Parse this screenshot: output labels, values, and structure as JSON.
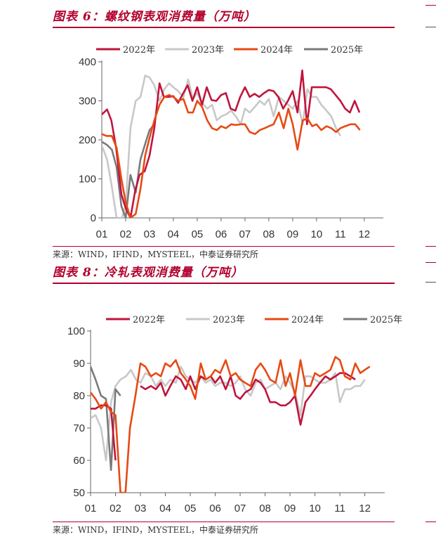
{
  "charts": [
    {
      "caption": "图表 6：螺纹钢表观消费量（万吨）",
      "source": "来源：WIND，IFIND，MYSTEEL，中泰证券研究所"
    },
    {
      "caption": "图表 8：冷轧表观消费量（万吨）",
      "source": "来源：WIND，IFIND，MYSTEEL，中泰证券研究所"
    }
  ],
  "chart_data": [
    {
      "type": "line",
      "title": "图表 6：螺纹钢表观消费量（万吨）",
      "x_tick_labels": [
        "01",
        "02",
        "03",
        "04",
        "05",
        "06",
        "07",
        "08",
        "09",
        "10",
        "11",
        "12"
      ],
      "xlim": [
        1,
        12.8
      ],
      "ylim": [
        0,
        400
      ],
      "yticks": [
        0,
        100,
        200,
        300,
        400
      ],
      "legend_position": "top",
      "grid": false,
      "series": [
        {
          "name": "2022年",
          "color": "#c0143c",
          "x": [
            1.0,
            1.22,
            1.4,
            1.6,
            1.82,
            2.0,
            2.2,
            2.4,
            2.58,
            2.8,
            3.0,
            3.2,
            3.42,
            3.6,
            3.8,
            4.0,
            4.2,
            4.4,
            4.6,
            4.8,
            5.0,
            5.2,
            5.4,
            5.6,
            5.8,
            6.0,
            6.2,
            6.4,
            6.6,
            6.8,
            7.0,
            7.2,
            7.4,
            7.6,
            7.8,
            8.0,
            8.2,
            8.4,
            8.6,
            8.8,
            9.0,
            9.2,
            9.4,
            9.6,
            9.8,
            10.0,
            10.2,
            10.4,
            10.6,
            10.8,
            11.0,
            11.2,
            11.4,
            11.6,
            11.8,
            12.0,
            12.2,
            12.4,
            12.6,
            12.8
          ],
          "y": [
            265,
            278,
            250,
            180,
            60,
            25,
            0,
            70,
            110,
            120,
            160,
            230,
            345,
            310,
            310,
            312,
            295,
            318,
            340,
            300,
            335,
            290,
            335,
            302,
            300,
            315,
            320,
            280,
            275,
            310,
            335,
            310,
            318,
            310,
            320,
            328,
            325,
            310,
            280,
            300,
            325,
            270,
            378,
            240,
            335,
            335,
            335,
            335,
            330,
            315,
            300,
            280,
            270,
            300,
            270,
            null,
            null,
            null,
            null,
            null
          ]
        },
        {
          "name": "2023年",
          "color": "#c8c8c8",
          "x": [
            1.0,
            1.22,
            1.42,
            1.62,
            1.84,
            2.0,
            2.2,
            2.42,
            2.62,
            2.82,
            3.0,
            3.2,
            3.42,
            3.62,
            3.82,
            4.0,
            4.2,
            4.42,
            4.62,
            4.82,
            5.0,
            5.2,
            5.42,
            5.62,
            5.82,
            6.0,
            6.2,
            6.42,
            6.62,
            6.82,
            7.0,
            7.2,
            7.42,
            7.62,
            7.82,
            8.0,
            8.2,
            8.42,
            8.62,
            8.82,
            9.0,
            9.2,
            9.42,
            9.62,
            9.82,
            10.0,
            10.2,
            10.42,
            10.62,
            10.82,
            11.0,
            11.2,
            11.42,
            11.62,
            11.82,
            12.0,
            12.2,
            12.42,
            12.62,
            12.82
          ],
          "y": [
            185,
            150,
            80,
            0,
            0,
            30,
            230,
            300,
            310,
            365,
            360,
            340,
            300,
            330,
            345,
            335,
            325,
            310,
            355,
            305,
            320,
            295,
            280,
            290,
            250,
            260,
            265,
            275,
            260,
            240,
            280,
            270,
            285,
            300,
            290,
            305,
            260,
            310,
            300,
            290,
            280,
            300,
            240,
            330,
            310,
            310,
            290,
            275,
            260,
            230,
            210,
            null,
            null,
            null,
            null,
            null,
            null,
            null,
            null,
            null
          ]
        },
        {
          "name": "2024年",
          "color": "#e64a14",
          "x": [
            1.0,
            1.2,
            1.42,
            1.62,
            1.82,
            2.0,
            2.2,
            2.42,
            2.62,
            2.82,
            3.0,
            3.2,
            3.42,
            3.62,
            3.82,
            4.0,
            4.2,
            4.42,
            4.62,
            4.82,
            5.0,
            5.2,
            5.42,
            5.62,
            5.82,
            6.0,
            6.2,
            6.42,
            6.62,
            6.82,
            7.0,
            7.2,
            7.42,
            7.62,
            7.82,
            8.0,
            8.2,
            8.42,
            8.62,
            8.82,
            9.0,
            9.2,
            9.42,
            9.62,
            9.82,
            10.0,
            10.2,
            10.42,
            10.62,
            10.82,
            11.0,
            11.2,
            11.42,
            11.62,
            11.82,
            12.0,
            12.2,
            12.42,
            12.62,
            12.82
          ],
          "y": [
            215,
            210,
            210,
            180,
            100,
            40,
            0,
            10,
            75,
            160,
            205,
            250,
            290,
            310,
            315,
            310,
            300,
            305,
            270,
            270,
            300,
            285,
            250,
            230,
            225,
            235,
            230,
            240,
            238,
            240,
            240,
            220,
            215,
            225,
            230,
            235,
            240,
            270,
            230,
            280,
            240,
            175,
            250,
            255,
            235,
            240,
            225,
            235,
            230,
            220,
            230,
            235,
            240,
            240,
            225,
            null,
            null,
            null,
            null,
            null
          ]
        },
        {
          "name": "2025年",
          "color": "#7a7a7a",
          "x": [
            1.0,
            1.2,
            1.42,
            1.62,
            1.82,
            2.0,
            2.2,
            2.42,
            2.62,
            2.82,
            3.0,
            3.2
          ],
          "y": [
            195,
            188,
            175,
            130,
            30,
            0,
            110,
            65,
            150,
            190,
            225,
            240
          ]
        }
      ]
    },
    {
      "type": "line",
      "title": "图表 8：冷轧表观消费量（万吨）",
      "x_tick_labels": [
        "01",
        "02",
        "03",
        "04",
        "05",
        "06",
        "07",
        "08",
        "09",
        "10",
        "11",
        "12"
      ],
      "xlim": [
        1,
        12.8
      ],
      "ylim": [
        50,
        100
      ],
      "yticks": [
        50,
        60,
        70,
        80,
        90,
        100
      ],
      "legend_position": "top",
      "grid": false,
      "series": [
        {
          "name": "2022年",
          "color": "#c0143c",
          "x": [
            1.0,
            1.2,
            1.42,
            1.62,
            1.82,
            2.0,
            2.2,
            2.42,
            2.62,
            2.82,
            3.0,
            3.2,
            3.42,
            3.62,
            3.82,
            4.0,
            4.2,
            4.42,
            4.62,
            4.82,
            5.0,
            5.2,
            5.42,
            5.62,
            5.82,
            6.0,
            6.2,
            6.42,
            6.62,
            6.82,
            7.0,
            7.2,
            7.42,
            7.62,
            7.82,
            8.0,
            8.2,
            8.42,
            8.62,
            8.82,
            9.0,
            9.2,
            9.42,
            9.62,
            9.82,
            10.0,
            10.2,
            10.42,
            10.62,
            10.82,
            11.0,
            11.2,
            11.42,
            11.62,
            11.82,
            12.0,
            12.2,
            12.42,
            12.62,
            12.82
          ],
          "y": [
            76,
            76,
            77,
            77,
            76,
            60,
            null,
            null,
            null,
            null,
            83,
            82,
            83,
            82,
            84,
            80,
            83,
            86,
            85,
            82,
            86,
            82,
            86,
            85,
            86,
            84,
            86,
            82,
            86,
            80,
            79,
            81,
            82,
            85,
            84,
            82,
            78,
            78,
            77,
            77,
            78,
            80,
            71,
            78,
            80,
            82,
            84,
            86,
            85,
            86,
            87,
            87,
            86,
            85,
            null,
            null,
            null,
            null,
            null,
            null
          ]
        },
        {
          "name": "2023年",
          "color": "#c8c8c8",
          "x": [
            1.0,
            1.2,
            1.42,
            1.62,
            1.82,
            2.0,
            2.2,
            2.42,
            2.62,
            2.82,
            3.0,
            3.2,
            3.42,
            3.62,
            3.82,
            4.0,
            4.2,
            4.42,
            4.62,
            4.82,
            5.0,
            5.2,
            5.42,
            5.62,
            5.82,
            6.0,
            6.2,
            6.42,
            6.62,
            6.82,
            7.0,
            7.2,
            7.42,
            7.62,
            7.82,
            8.0,
            8.2,
            8.42,
            8.62,
            8.82,
            9.0,
            9.2,
            9.42,
            9.62,
            9.82,
            10.0,
            10.2,
            10.42,
            10.62,
            10.82,
            11.0,
            11.2,
            11.42,
            11.62,
            11.82,
            12.0,
            12.2,
            12.42,
            12.62,
            12.82
          ],
          "y": [
            73,
            74,
            70,
            60,
            78,
            83,
            85,
            86,
            88,
            85,
            84,
            87,
            86,
            83,
            85,
            83,
            85,
            84,
            89,
            86,
            85,
            84,
            86,
            84,
            85,
            83,
            84,
            84,
            83,
            84,
            86,
            82,
            80,
            84,
            85,
            82,
            83,
            84,
            82,
            86,
            84,
            81,
            74,
            86,
            86,
            85,
            84,
            84,
            85,
            87,
            78,
            82,
            82,
            83,
            83,
            85,
            null,
            null,
            null,
            null
          ]
        },
        {
          "name": "2024年",
          "color": "#e64a14",
          "x": [
            1.0,
            1.2,
            1.42,
            1.62,
            1.82,
            2.0,
            2.2,
            2.4,
            2.58,
            2.8,
            3.0,
            3.2,
            3.42,
            3.62,
            3.82,
            4.0,
            4.2,
            4.42,
            4.62,
            4.82,
            5.0,
            5.2,
            5.42,
            5.62,
            5.82,
            6.0,
            6.2,
            6.42,
            6.62,
            6.82,
            7.0,
            7.2,
            7.42,
            7.62,
            7.82,
            8.0,
            8.2,
            8.42,
            8.62,
            8.82,
            9.0,
            9.2,
            9.42,
            9.62,
            9.82,
            10.0,
            10.2,
            10.42,
            10.62,
            10.82,
            11.0,
            11.2,
            11.42,
            11.62,
            11.82,
            12.0,
            12.2,
            12.42,
            12.62,
            12.82
          ],
          "y": [
            81,
            79,
            76,
            78,
            75,
            74,
            50,
            50,
            70,
            80,
            90,
            89,
            86,
            87,
            86,
            90,
            89,
            91,
            87,
            85,
            83,
            79,
            90,
            85,
            86,
            88,
            87,
            91,
            86,
            87,
            85,
            84,
            83,
            88,
            90,
            88,
            85,
            84,
            91,
            83,
            87,
            80,
            91,
            83,
            83,
            87,
            86,
            87,
            88,
            92,
            91,
            86,
            85,
            90,
            87,
            88,
            89,
            null,
            null,
            null
          ]
        },
        {
          "name": "2025年",
          "color": "#7a7a7a",
          "x": [
            1.0,
            1.2,
            1.42,
            1.62,
            1.82,
            2.0,
            2.2
          ],
          "y": [
            89,
            85,
            80,
            79,
            57,
            82,
            80
          ]
        }
      ]
    }
  ]
}
